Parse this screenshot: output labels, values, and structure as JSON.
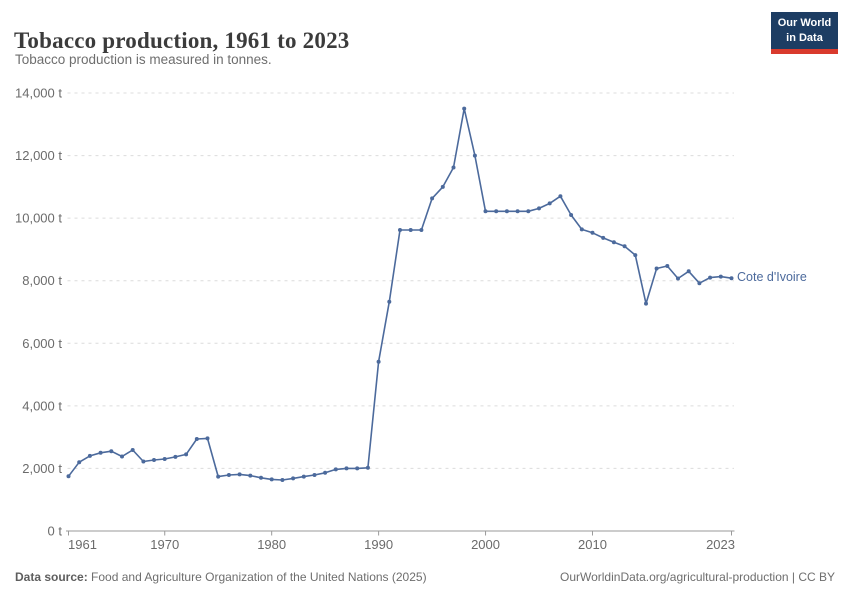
{
  "header": {
    "title": "Tobacco production, 1961 to 2023",
    "subtitle": "Tobacco production is measured in tonnes."
  },
  "logo": {
    "line1": "Our World",
    "line2": "in Data",
    "bg_color": "#1d3d63",
    "accent_color": "#d93a2d"
  },
  "footer": {
    "datasource_label": "Data source:",
    "datasource_value": " Food and Agriculture Organization of the United Nations (2025)",
    "right_text": "OurWorldinData.org/agricultural-production | CC BY"
  },
  "colors": {
    "line": "#4c6a9c",
    "marker": "#4c6a9c",
    "entity_label": "#4c6a9c",
    "gridline": "#dcdcdc",
    "axis": "#9a9a9a",
    "tick_text": "#6b6b6b"
  },
  "chart_data": {
    "type": "line",
    "title": "Tobacco production, 1961 to 2023",
    "subtitle": "Tobacco production is measured in tonnes.",
    "unit": "t",
    "xlabel": "",
    "ylabel": "",
    "ylim": [
      0,
      14000
    ],
    "yticks": [
      0,
      2000,
      4000,
      6000,
      8000,
      10000,
      12000,
      14000
    ],
    "xticks": [
      1961,
      1970,
      1980,
      1990,
      2000,
      2010,
      2023
    ],
    "grid": true,
    "legend_position": "end-of-line",
    "x": [
      1961,
      1962,
      1963,
      1964,
      1965,
      1966,
      1967,
      1968,
      1969,
      1970,
      1971,
      1972,
      1973,
      1974,
      1975,
      1976,
      1977,
      1978,
      1979,
      1980,
      1981,
      1982,
      1983,
      1984,
      1985,
      1986,
      1987,
      1988,
      1989,
      1990,
      1991,
      1992,
      1993,
      1994,
      1995,
      1996,
      1997,
      1998,
      1999,
      2000,
      2001,
      2002,
      2003,
      2004,
      2005,
      2006,
      2007,
      2008,
      2009,
      2010,
      2011,
      2012,
      2013,
      2014,
      2015,
      2016,
      2017,
      2018,
      2019,
      2020,
      2021,
      2022,
      2023
    ],
    "series": [
      {
        "name": "Cote d'Ivoire",
        "values": [
          1750,
          2200,
          2400,
          2500,
          2550,
          2380,
          2590,
          2220,
          2270,
          2300,
          2370,
          2450,
          2940,
          2960,
          1740,
          1790,
          1810,
          1770,
          1700,
          1650,
          1630,
          1680,
          1740,
          1790,
          1860,
          1970,
          2000,
          2000,
          2020,
          5410,
          7330,
          9620,
          9620,
          9620,
          10630,
          11000,
          11620,
          13500,
          12000,
          10220,
          10220,
          10220,
          10220,
          10220,
          10310,
          10470,
          10700,
          10100,
          9640,
          9530,
          9370,
          9230,
          9100,
          8820,
          7270,
          8390,
          8470,
          8070,
          8300,
          7920,
          8100,
          8130,
          8080
        ]
      }
    ]
  }
}
